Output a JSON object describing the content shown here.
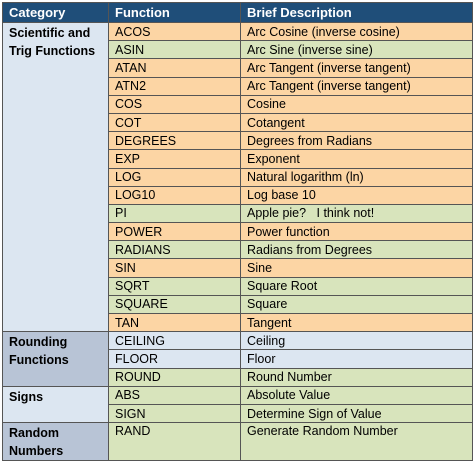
{
  "headers": {
    "category": "Category",
    "function": "Function",
    "description": "Brief Description"
  },
  "colors": {
    "header": "#1f4e79",
    "orange": "#fcd5a4",
    "green": "#d8e4bc",
    "blue": "#dce6f1",
    "gray": "#b8c4d6"
  },
  "groups": [
    {
      "category": "Scientific and Trig Functions",
      "rows": [
        {
          "function": "ACOS",
          "description": "Arc Cosine (inverse cosine)"
        },
        {
          "function": "ASIN",
          "description": "Arc Sine (inverse sine)"
        },
        {
          "function": "ATAN",
          "description": "Arc Tangent (inverse tangent)"
        },
        {
          "function": "ATN2",
          "description": "Arc Tangent (inverse tangent)"
        },
        {
          "function": "COS",
          "description": "Cosine"
        },
        {
          "function": "COT",
          "description": "Cotangent"
        },
        {
          "function": "DEGREES",
          "description": "Degrees from Radians"
        },
        {
          "function": "EXP",
          "description": "Exponent"
        },
        {
          "function": "LOG",
          "description": "Natural logarithm (ln)"
        },
        {
          "function": "LOG10",
          "description": "Log base 10"
        },
        {
          "function": "PI",
          "description": "Apple pie?   I think not!"
        },
        {
          "function": "POWER",
          "description": "Power function"
        },
        {
          "function": "RADIANS",
          "description": "Radians from Degrees"
        },
        {
          "function": "SIN",
          "description": "Sine"
        },
        {
          "function": "SQRT",
          "description": "Square Root"
        },
        {
          "function": "SQUARE",
          "description": "Square"
        },
        {
          "function": "TAN",
          "description": "Tangent"
        }
      ]
    },
    {
      "category": "Rounding Functions",
      "rows": [
        {
          "function": "CEILING",
          "description": "Ceiling"
        },
        {
          "function": "FLOOR",
          "description": "Floor"
        },
        {
          "function": "ROUND",
          "description": "Round Number"
        }
      ]
    },
    {
      "category": "Signs",
      "rows": [
        {
          "function": "ABS",
          "description": "Absolute Value"
        },
        {
          "function": "SIGN",
          "description": "Determine Sign of Value"
        }
      ]
    },
    {
      "category": "Random Numbers",
      "rows": [
        {
          "function": "RAND",
          "description": "Generate Random Number"
        }
      ]
    }
  ]
}
